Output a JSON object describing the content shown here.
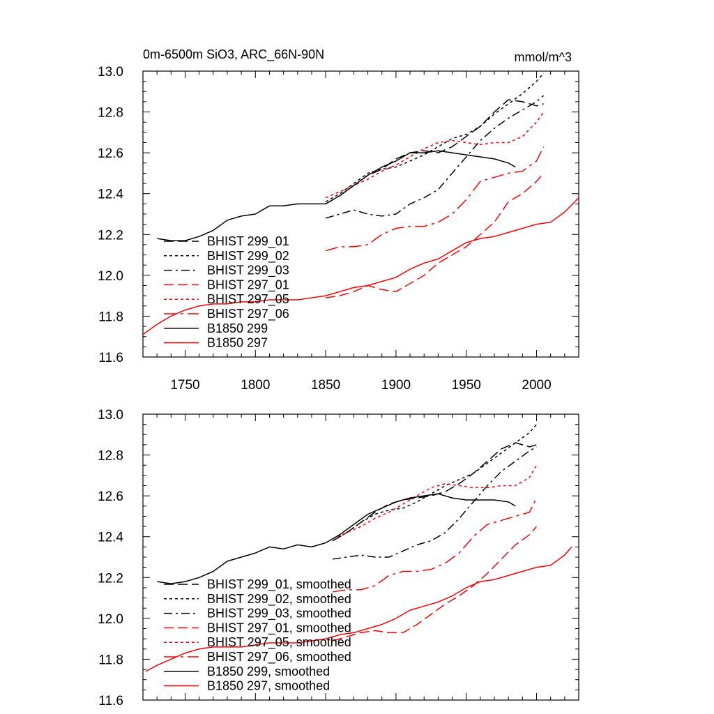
{
  "title_left": "0m-6500m SiO3, ARC_66N-90N",
  "title_right": "mmol/m^3",
  "colors": {
    "black": "#000000",
    "red": "#ff0000"
  },
  "chart_data": [
    {
      "type": "line",
      "xlim": [
        1720,
        2030
      ],
      "ylim": [
        11.6,
        13.0
      ],
      "xticks": [
        1750,
        1800,
        1850,
        1900,
        1950,
        2000
      ],
      "yticks": [
        11.6,
        11.8,
        12.0,
        12.2,
        12.4,
        12.6,
        12.8,
        13.0
      ],
      "ytick_labels": [
        "11.6",
        "11.8",
        "12.0",
        "12.2",
        "12.4",
        "12.6",
        "12.8",
        "13.0"
      ],
      "xtick_labels": [
        "1750",
        "1800",
        "1850",
        "1900",
        "1950",
        "2000"
      ],
      "legend_position": "lower-left",
      "series": [
        {
          "name": "BHIST 299_01",
          "color": "#000000",
          "dash": "longdash",
          "x": [
            1850,
            1860,
            1870,
            1880,
            1890,
            1900,
            1910,
            1920,
            1930,
            1940,
            1950,
            1960,
            1970,
            1980,
            1990,
            2000,
            2005
          ],
          "y": [
            12.35,
            12.39,
            12.44,
            12.49,
            12.52,
            12.57,
            12.6,
            12.61,
            12.6,
            12.63,
            12.68,
            12.73,
            12.8,
            12.86,
            12.85,
            12.83,
            12.84
          ]
        },
        {
          "name": "BHIST 299_02",
          "color": "#000000",
          "dash": "dot",
          "x": [
            1850,
            1860,
            1870,
            1880,
            1890,
            1900,
            1910,
            1920,
            1930,
            1940,
            1950,
            1960,
            1970,
            1980,
            1990,
            2000,
            2005
          ],
          "y": [
            12.36,
            12.4,
            12.45,
            12.5,
            12.52,
            12.53,
            12.56,
            12.59,
            12.63,
            12.67,
            12.69,
            12.73,
            12.79,
            12.84,
            12.89,
            12.95,
            12.99
          ]
        },
        {
          "name": "BHIST 299_03",
          "color": "#000000",
          "dash": "dashdot",
          "x": [
            1850,
            1860,
            1870,
            1880,
            1890,
            1900,
            1910,
            1920,
            1930,
            1940,
            1950,
            1960,
            1970,
            1980,
            1990,
            2000,
            2005
          ],
          "y": [
            12.28,
            12.3,
            12.32,
            12.3,
            12.29,
            12.3,
            12.35,
            12.38,
            12.42,
            12.5,
            12.58,
            12.66,
            12.72,
            12.77,
            12.81,
            12.85,
            12.88
          ]
        },
        {
          "name": "BHIST 297_01",
          "color": "#ff0000",
          "dash": "longdash",
          "x": [
            1850,
            1860,
            1870,
            1880,
            1890,
            1900,
            1910,
            1920,
            1930,
            1940,
            1950,
            1960,
            1970,
            1980,
            1990,
            2000,
            2005
          ],
          "y": [
            11.89,
            11.9,
            11.92,
            11.95,
            11.93,
            11.92,
            11.96,
            12.0,
            12.06,
            12.1,
            12.14,
            12.2,
            12.26,
            12.36,
            12.4,
            12.46,
            12.5
          ]
        },
        {
          "name": "BHIST 297_05",
          "color": "#ff0000",
          "dash": "dot",
          "x": [
            1850,
            1860,
            1870,
            1880,
            1890,
            1900,
            1910,
            1920,
            1930,
            1940,
            1950,
            1960,
            1970,
            1980,
            1990,
            2000,
            2005
          ],
          "y": [
            12.38,
            12.41,
            12.44,
            12.47,
            12.51,
            12.54,
            12.58,
            12.62,
            12.65,
            12.66,
            12.65,
            12.64,
            12.65,
            12.65,
            12.68,
            12.75,
            12.8
          ]
        },
        {
          "name": "BHIST 297_06",
          "color": "#ff0000",
          "dash": "longdashdot",
          "x": [
            1850,
            1860,
            1870,
            1880,
            1890,
            1900,
            1910,
            1920,
            1930,
            1940,
            1950,
            1960,
            1970,
            1980,
            1990,
            2000,
            2005
          ],
          "y": [
            12.12,
            12.14,
            12.14,
            12.15,
            12.2,
            12.23,
            12.24,
            12.24,
            12.26,
            12.3,
            12.37,
            12.46,
            12.48,
            12.5,
            12.51,
            12.56,
            12.63
          ]
        },
        {
          "name": "B1850 299",
          "color": "#000000",
          "dash": "solid",
          "x": [
            1730,
            1740,
            1750,
            1760,
            1770,
            1780,
            1790,
            1800,
            1810,
            1820,
            1830,
            1840,
            1850,
            1860,
            1870,
            1880,
            1890,
            1900,
            1910,
            1920,
            1930,
            1940,
            1950,
            1960,
            1970,
            1980,
            1985
          ],
          "y": [
            12.18,
            12.17,
            12.17,
            12.19,
            12.22,
            12.27,
            12.29,
            12.3,
            12.34,
            12.34,
            12.35,
            12.35,
            12.35,
            12.39,
            12.44,
            12.49,
            12.53,
            12.56,
            12.6,
            12.6,
            12.61,
            12.6,
            12.59,
            12.58,
            12.57,
            12.55,
            12.53
          ]
        },
        {
          "name": "B1850 297",
          "color": "#ff0000",
          "dash": "solid",
          "x": [
            1720,
            1730,
            1740,
            1750,
            1760,
            1770,
            1780,
            1790,
            1800,
            1810,
            1820,
            1830,
            1840,
            1850,
            1860,
            1870,
            1880,
            1890,
            1900,
            1910,
            1920,
            1930,
            1940,
            1950,
            1960,
            1970,
            1980,
            1990,
            2000,
            2010,
            2020,
            2030
          ],
          "y": [
            11.71,
            11.76,
            11.8,
            11.83,
            11.85,
            11.86,
            11.86,
            11.87,
            11.87,
            11.88,
            11.88,
            11.88,
            11.89,
            11.9,
            11.92,
            11.94,
            11.95,
            11.97,
            11.99,
            12.03,
            12.06,
            12.08,
            12.12,
            12.16,
            12.18,
            12.19,
            12.21,
            12.23,
            12.25,
            12.26,
            12.31,
            12.38
          ]
        }
      ]
    },
    {
      "type": "line",
      "xlim": [
        1720,
        2030
      ],
      "ylim": [
        11.6,
        13.0
      ],
      "xticks": [
        1750,
        1800,
        1850,
        1900,
        1950,
        2000
      ],
      "yticks": [
        11.6,
        11.8,
        12.0,
        12.2,
        12.4,
        12.6,
        12.8,
        13.0
      ],
      "ytick_labels": [
        "11.6",
        "11.8",
        "12.0",
        "12.2",
        "12.4",
        "12.6",
        "12.8",
        "13.0"
      ],
      "legend_position": "lower-left",
      "series": [
        {
          "name": "BHIST 299_01, smoothed",
          "color": "#000000",
          "dash": "longdash",
          "x": [
            1855,
            1865,
            1875,
            1885,
            1895,
            1905,
            1915,
            1925,
            1935,
            1945,
            1955,
            1965,
            1975,
            1985,
            1995,
            2000
          ],
          "y": [
            12.38,
            12.42,
            12.47,
            12.52,
            12.56,
            12.58,
            12.59,
            12.6,
            12.62,
            12.66,
            12.71,
            12.77,
            12.83,
            12.86,
            12.84,
            12.85
          ]
        },
        {
          "name": "BHIST 299_02, smoothed",
          "color": "#000000",
          "dash": "dot",
          "x": [
            1855,
            1865,
            1875,
            1885,
            1895,
            1905,
            1915,
            1925,
            1935,
            1945,
            1955,
            1965,
            1975,
            1985,
            1995,
            2000
          ],
          "y": [
            12.38,
            12.42,
            12.47,
            12.51,
            12.53,
            12.54,
            12.57,
            12.61,
            12.65,
            12.68,
            12.71,
            12.76,
            12.81,
            12.86,
            12.91,
            12.95
          ]
        },
        {
          "name": "BHIST 299_03, smoothed",
          "color": "#000000",
          "dash": "dashdot",
          "x": [
            1855,
            1865,
            1875,
            1885,
            1895,
            1905,
            1915,
            1925,
            1935,
            1945,
            1955,
            1965,
            1975,
            1985,
            1995,
            2000
          ],
          "y": [
            12.29,
            12.3,
            12.31,
            12.3,
            12.3,
            12.33,
            12.36,
            12.38,
            12.42,
            12.49,
            12.57,
            12.65,
            12.72,
            12.77,
            12.82,
            12.84
          ]
        },
        {
          "name": "BHIST 297_01, smoothed",
          "color": "#ff0000",
          "dash": "longdash",
          "x": [
            1855,
            1865,
            1875,
            1885,
            1895,
            1905,
            1915,
            1925,
            1935,
            1945,
            1955,
            1965,
            1975,
            1985,
            1995,
            2000
          ],
          "y": [
            11.89,
            11.91,
            11.93,
            11.94,
            11.93,
            11.93,
            11.97,
            12.02,
            12.07,
            12.11,
            12.16,
            12.22,
            12.29,
            12.36,
            12.41,
            12.45
          ]
        },
        {
          "name": "BHIST 297_05, smoothed",
          "color": "#ff0000",
          "dash": "dot",
          "x": [
            1855,
            1865,
            1875,
            1885,
            1895,
            1905,
            1915,
            1925,
            1935,
            1945,
            1955,
            1965,
            1975,
            1985,
            1995,
            2000
          ],
          "y": [
            12.39,
            12.42,
            12.45,
            12.49,
            12.52,
            12.56,
            12.6,
            12.64,
            12.66,
            12.65,
            12.64,
            12.64,
            12.65,
            12.65,
            12.69,
            12.75
          ]
        },
        {
          "name": "BHIST 297_06, smoothed",
          "color": "#ff0000",
          "dash": "longdashdot",
          "x": [
            1855,
            1865,
            1875,
            1885,
            1895,
            1905,
            1915,
            1925,
            1935,
            1945,
            1955,
            1965,
            1975,
            1985,
            1995,
            2000
          ],
          "y": [
            12.13,
            12.14,
            12.14,
            12.16,
            12.21,
            12.23,
            12.23,
            12.24,
            12.27,
            12.32,
            12.4,
            12.46,
            12.48,
            12.5,
            12.52,
            12.59
          ]
        },
        {
          "name": "B1850 299, smoothed",
          "color": "#000000",
          "dash": "solid",
          "x": [
            1730,
            1740,
            1750,
            1760,
            1770,
            1780,
            1790,
            1800,
            1810,
            1820,
            1830,
            1840,
            1850,
            1860,
            1870,
            1880,
            1890,
            1900,
            1910,
            1920,
            1930,
            1940,
            1950,
            1960,
            1970,
            1980,
            1985
          ],
          "y": [
            12.18,
            12.17,
            12.18,
            12.2,
            12.23,
            12.28,
            12.3,
            12.32,
            12.35,
            12.34,
            12.36,
            12.35,
            12.37,
            12.41,
            12.46,
            12.51,
            12.54,
            12.57,
            12.59,
            12.6,
            12.61,
            12.59,
            12.58,
            12.58,
            12.58,
            12.57,
            12.55
          ]
        },
        {
          "name": "B1850 297, smoothed",
          "color": "#ff0000",
          "dash": "solid",
          "x": [
            1722,
            1730,
            1740,
            1750,
            1760,
            1770,
            1780,
            1790,
            1800,
            1810,
            1820,
            1830,
            1840,
            1850,
            1860,
            1870,
            1880,
            1890,
            1900,
            1910,
            1920,
            1930,
            1940,
            1950,
            1960,
            1970,
            1980,
            1990,
            2000,
            2010,
            2020,
            2025
          ],
          "y": [
            11.74,
            11.77,
            11.8,
            11.83,
            11.85,
            11.86,
            11.86,
            11.86,
            11.87,
            11.88,
            11.88,
            11.88,
            11.89,
            11.9,
            11.92,
            11.93,
            11.95,
            11.97,
            12.0,
            12.04,
            12.06,
            12.08,
            12.11,
            12.15,
            12.18,
            12.19,
            12.21,
            12.23,
            12.25,
            12.26,
            12.31,
            12.35
          ]
        }
      ]
    }
  ]
}
